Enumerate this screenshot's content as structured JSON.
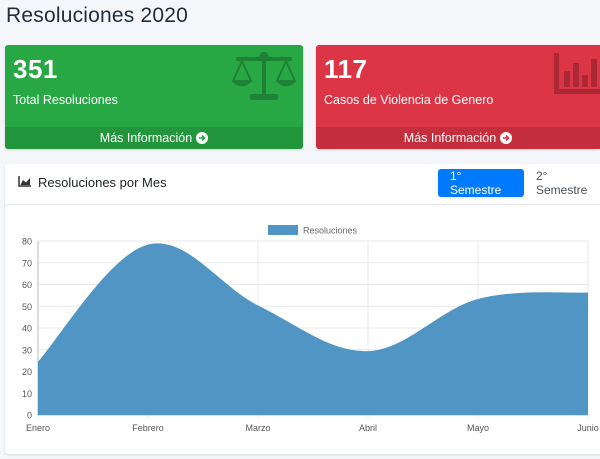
{
  "page": {
    "title": "Resoluciones 2020"
  },
  "boxes": [
    {
      "number": "351",
      "label": "Total Resoluciones",
      "footer": "Más Información",
      "color": "#28a745",
      "icon": "balance-scale-icon"
    },
    {
      "number": "117",
      "label": "Casos de Violencia de Genero",
      "footer": "Más Información",
      "color": "#dc3545",
      "icon": "bar-chart-icon"
    }
  ],
  "card": {
    "title": "Resoluciones por Mes",
    "title_icon": "area-chart-icon",
    "tabs": [
      {
        "label": "1° Semestre",
        "active": true
      },
      {
        "label": "2° Semestre",
        "active": false
      }
    ]
  },
  "accent_color": "#007bff",
  "chart_data": {
    "type": "area",
    "categories": [
      "Enero",
      "Febrero",
      "Marzo",
      "Abril",
      "Mayo",
      "Junio"
    ],
    "series": [
      {
        "name": "Resoluciones",
        "values": [
          24,
          78,
          50,
          29,
          53,
          56
        ],
        "color": "#5195c5"
      }
    ],
    "legend": "top-center",
    "ylim": [
      0,
      80
    ],
    "yticks": [
      0,
      10,
      20,
      30,
      40,
      50,
      60,
      70,
      80
    ],
    "grid": true,
    "xlabel": "",
    "ylabel": "",
    "title": ""
  }
}
